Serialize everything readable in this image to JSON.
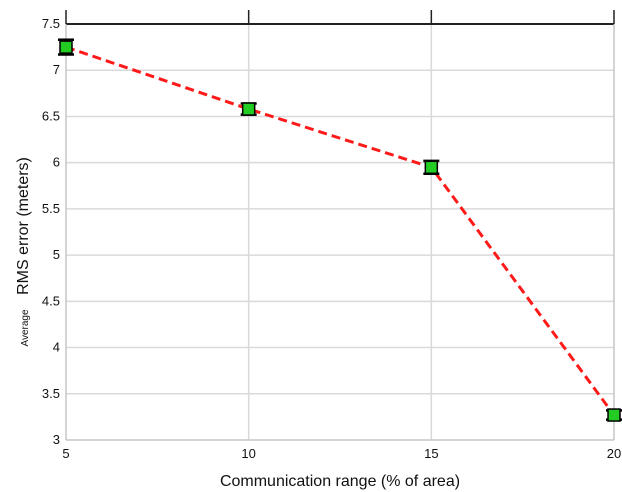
{
  "chart_data": {
    "type": "line",
    "title": "",
    "xlabel": "Communication range (% of area)",
    "ylabel_small": "Average",
    "ylabel_main": "RMS error (meters)",
    "x": [
      5,
      10,
      15,
      20
    ],
    "series": [
      {
        "values": [
          7.25,
          6.58,
          5.95,
          3.27
        ],
        "error": [
          0.08,
          0.06,
          0.07,
          0.05
        ],
        "line_color": "#ff1a1a",
        "line_style": "dashed",
        "marker": "square",
        "marker_fill": "#22cc22",
        "marker_edge": "#000000"
      }
    ],
    "xlim": [
      5,
      20
    ],
    "ylim": [
      3,
      7.5
    ],
    "xticks": [
      "5",
      "10",
      "15",
      "20"
    ],
    "yticks": [
      "3",
      "3.5",
      "4",
      "4.5",
      "5",
      "5.5",
      "6",
      "6.5",
      "7",
      "7.5"
    ],
    "grid": true,
    "grid_color": "#d9d9d9"
  }
}
